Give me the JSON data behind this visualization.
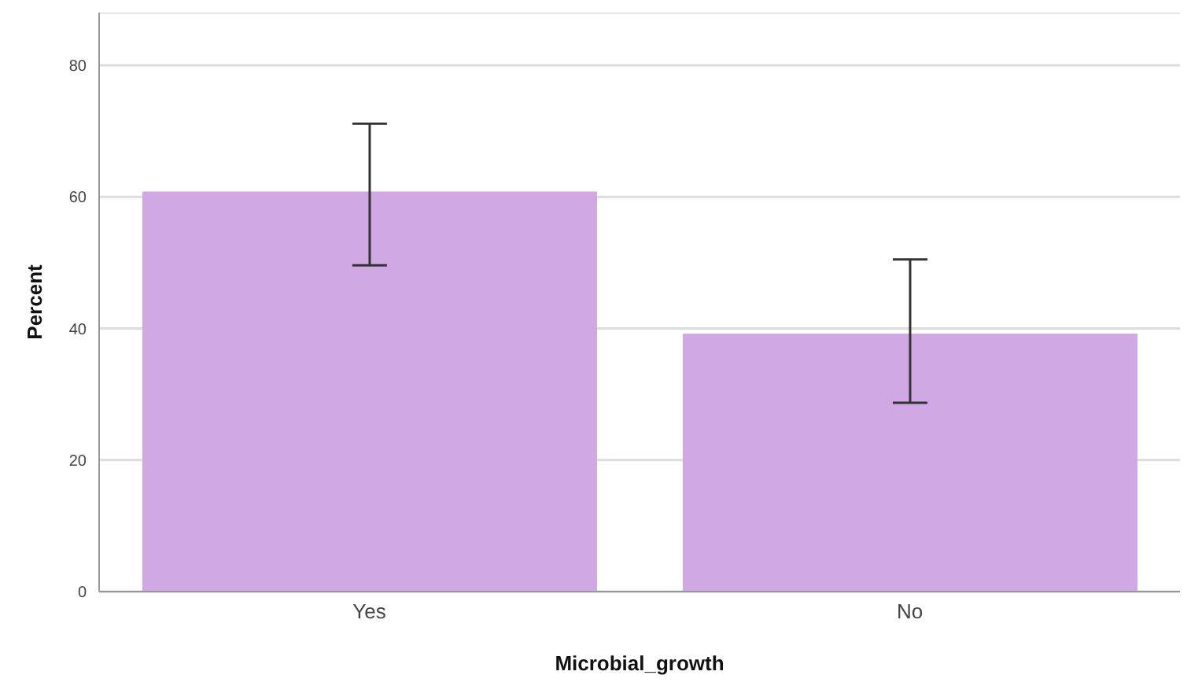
{
  "chart_data": {
    "type": "bar",
    "xlabel": "Microbial_growth",
    "ylabel": "Percent",
    "categories": [
      "Yes",
      "No"
    ],
    "values": [
      60.8,
      39.2
    ],
    "errors": [
      [
        49.6,
        71.1
      ],
      [
        28.7,
        50.5
      ]
    ],
    "color": "#d0a8e3",
    "ylim": [
      0,
      88
    ],
    "yticks": [
      0,
      20,
      40,
      60,
      80
    ],
    "grid": "y"
  }
}
